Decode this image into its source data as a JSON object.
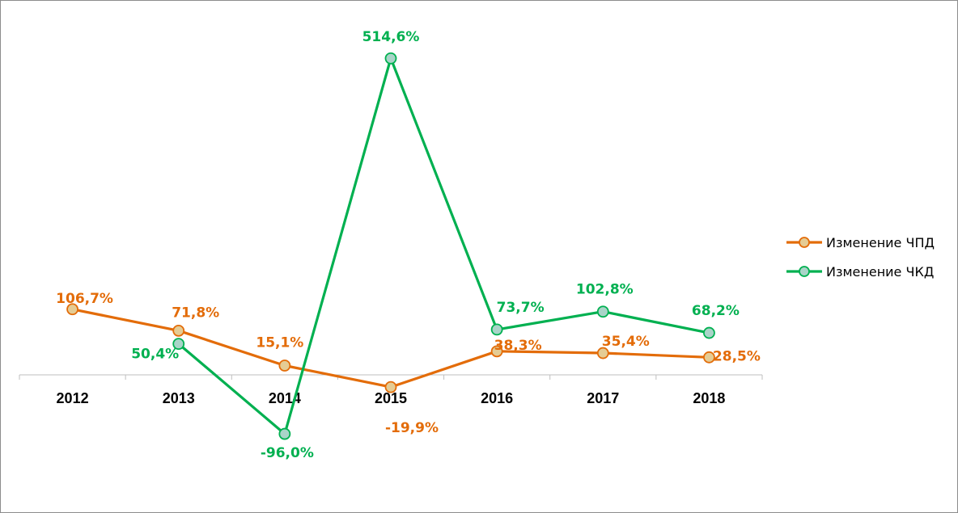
{
  "chart_data": {
    "type": "line",
    "categories": [
      "2012",
      "2013",
      "2014",
      "2015",
      "2016",
      "2017",
      "2018"
    ],
    "series": [
      {
        "name": "Изменение ЧПД",
        "color": "#e36c09",
        "marker_fill": "#e5cc94",
        "values": [
          106.7,
          71.8,
          15.1,
          -19.9,
          38.3,
          35.4,
          28.5
        ],
        "labels": [
          "106,7%",
          "71,8%",
          "15,1%",
          "-19,9%",
          "38,3%",
          "35,4%",
          "28,5%"
        ]
      },
      {
        "name": "Изменение ЧКД",
        "color": "#00b050",
        "marker_fill": "#a9d4c8",
        "values": [
          null,
          50.4,
          -96.0,
          514.6,
          73.7,
          102.8,
          68.2
        ],
        "labels": [
          null,
          "50,4%",
          "-96,0%",
          "514,6%",
          "73,7%",
          "102,8%",
          "68,2%"
        ]
      }
    ],
    "legend_position": "right",
    "grid": false,
    "title": "",
    "xlabel": "",
    "ylabel": ""
  }
}
